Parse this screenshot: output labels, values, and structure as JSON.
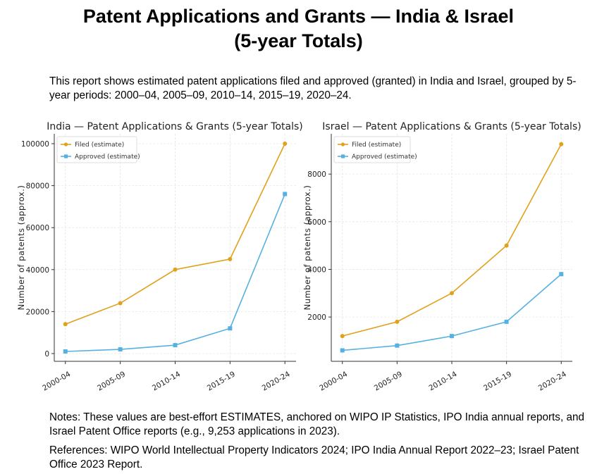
{
  "title_line1": "Patent Applications and Grants — India & Israel",
  "title_line2": "(5-year Totals)",
  "description": "This report shows estimated patent applications filed and approved (granted) in India and Israel, grouped by 5-year periods: 2000–04, 2005–09, 2010–14, 2015–19, 2020–24.",
  "notes": "Notes: These values are best-effort ESTIMATES, anchored on WIPO IP Statistics, IPO India annual reports, and Israel Patent Office reports (e.g., 9,253 applications in 2023).",
  "references": "References: WIPO World Intellectual Property Indicators 2024; IPO India Annual Report 2022–23; Israel Patent Office 2023 Report.",
  "colors": {
    "filed": "#E0A11B",
    "approved": "#56B1E3"
  },
  "chart_data": [
    {
      "type": "line",
      "title": "India — Patent Applications & Grants (5-year Totals)",
      "ylabel": "Number of patents (approx.)",
      "xlabel": "",
      "categories": [
        "2000-04",
        "2005-09",
        "2010-14",
        "2015-19",
        "2020-24"
      ],
      "yticks": [
        0,
        20000,
        40000,
        60000,
        80000,
        100000
      ],
      "ylim": [
        -3700,
        104700
      ],
      "grid": true,
      "legend": "top-left",
      "series": [
        {
          "name": "Filed (estimate)",
          "marker": "circle",
          "values": [
            14000,
            24000,
            40000,
            45000,
            100000
          ]
        },
        {
          "name": "Approved (estimate)",
          "marker": "square",
          "values": [
            1000,
            2000,
            4000,
            12000,
            76000
          ]
        }
      ]
    },
    {
      "type": "line",
      "title": "Israel — Patent Applications & Grants (5-year Totals)",
      "ylabel": "Number of patents (approx.)",
      "xlabel": "",
      "categories": [
        "2000-04",
        "2005-09",
        "2010-14",
        "2015-19",
        "2020-24"
      ],
      "yticks": [
        2000,
        4000,
        6000,
        8000
      ],
      "ylim": [
        140,
        9690
      ],
      "grid": true,
      "legend": "top-left",
      "series": [
        {
          "name": "Filed (estimate)",
          "marker": "circle",
          "values": [
            1200,
            1800,
            3000,
            5000,
            9253
          ]
        },
        {
          "name": "Approved (estimate)",
          "marker": "square",
          "values": [
            600,
            800,
            1200,
            1800,
            3800
          ]
        }
      ]
    }
  ]
}
